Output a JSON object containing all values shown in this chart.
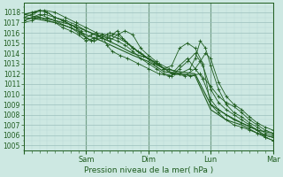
{
  "xlabel": "Pression niveau de la mer( hPa )",
  "bg_color": "#cde8e2",
  "grid_major_color": "#9bbfbc",
  "grid_minor_color": "#b8d8d4",
  "line_color": "#1e5c1e",
  "ylim": [
    1004.5,
    1018.9
  ],
  "xlim": [
    0,
    96
  ],
  "yticks": [
    1005,
    1006,
    1007,
    1008,
    1009,
    1010,
    1011,
    1012,
    1013,
    1014,
    1015,
    1016,
    1017,
    1018
  ],
  "day_positions": [
    0,
    24,
    48,
    72,
    96
  ],
  "day_labels": [
    "",
    "Sam",
    "Dim",
    "Lun",
    "Mar"
  ],
  "series": [
    {
      "x": [
        0,
        6,
        12,
        18,
        24,
        30,
        36,
        42,
        48,
        54,
        60,
        66,
        72,
        78,
        84,
        90,
        96
      ],
      "y": [
        1017.5,
        1017.3,
        1017.0,
        1016.5,
        1015.8,
        1015.2,
        1014.5,
        1013.8,
        1013.2,
        1012.2,
        1012.0,
        1011.8,
        1008.5,
        1007.5,
        1007.0,
        1006.2,
        1005.8
      ],
      "markers": false
    },
    {
      "x": [
        0,
        6,
        12,
        18,
        24,
        30,
        36,
        42,
        48,
        54,
        60,
        66,
        72,
        78,
        84,
        90,
        96
      ],
      "y": [
        1017.8,
        1017.5,
        1017.2,
        1016.8,
        1016.2,
        1015.5,
        1014.8,
        1014.0,
        1013.5,
        1012.5,
        1012.2,
        1012.0,
        1009.0,
        1008.0,
        1007.2,
        1006.5,
        1006.2
      ],
      "markers": false
    },
    {
      "x": [
        0,
        3,
        6,
        9,
        12,
        15,
        18,
        20,
        22,
        24,
        26,
        28,
        30,
        33,
        36,
        39,
        42,
        45,
        48,
        51,
        54,
        57,
        60,
        63,
        66,
        69,
        72,
        75,
        78,
        81,
        84,
        87,
        90,
        93,
        96
      ],
      "y": [
        1017.5,
        1017.8,
        1018.2,
        1018.0,
        1017.5,
        1017.2,
        1016.8,
        1016.5,
        1016.2,
        1015.5,
        1015.8,
        1016.0,
        1015.5,
        1015.2,
        1015.8,
        1016.2,
        1015.8,
        1014.5,
        1013.8,
        1013.2,
        1012.5,
        1012.8,
        1014.5,
        1015.0,
        1014.5,
        1013.0,
        1009.0,
        1008.2,
        1007.5,
        1007.0,
        1006.8,
        1006.5,
        1006.2,
        1005.8,
        1005.5
      ],
      "markers": true
    },
    {
      "x": [
        0,
        3,
        6,
        9,
        12,
        15,
        18,
        21,
        24,
        27,
        30,
        33,
        36,
        39,
        42,
        45,
        48,
        51,
        54,
        57,
        60,
        63,
        66,
        69,
        72,
        75,
        78,
        81,
        84,
        87,
        90,
        93,
        96
      ],
      "y": [
        1017.2,
        1017.5,
        1017.8,
        1017.5,
        1017.2,
        1016.8,
        1016.5,
        1016.0,
        1015.5,
        1015.2,
        1015.5,
        1016.0,
        1015.8,
        1015.2,
        1014.5,
        1014.0,
        1013.5,
        1013.0,
        1012.5,
        1012.0,
        1012.8,
        1013.5,
        1012.5,
        1011.5,
        1009.5,
        1008.5,
        1008.0,
        1007.5,
        1007.2,
        1006.8,
        1006.5,
        1006.0,
        1005.8
      ],
      "markers": true
    },
    {
      "x": [
        0,
        3,
        6,
        9,
        12,
        15,
        18,
        21,
        24,
        27,
        30,
        33,
        36,
        39,
        42,
        45,
        48,
        51,
        54,
        57,
        60,
        63,
        66,
        69,
        72,
        75,
        78,
        81,
        84,
        87,
        90,
        93,
        96
      ],
      "y": [
        1017.0,
        1017.2,
        1017.5,
        1017.2,
        1017.0,
        1016.5,
        1016.2,
        1015.8,
        1015.2,
        1015.5,
        1015.8,
        1015.5,
        1015.2,
        1014.8,
        1014.2,
        1013.5,
        1013.0,
        1012.5,
        1012.0,
        1011.8,
        1012.5,
        1013.2,
        1014.0,
        1012.8,
        1010.5,
        1009.2,
        1008.5,
        1008.0,
        1007.5,
        1007.0,
        1006.5,
        1005.8,
        1005.5
      ],
      "markers": true
    },
    {
      "x": [
        0,
        3,
        6,
        9,
        12,
        15,
        18,
        20,
        22,
        24,
        26,
        28,
        30,
        32,
        34,
        37,
        40,
        44,
        48,
        52,
        56,
        60,
        64,
        66,
        68,
        70,
        72,
        75,
        78,
        81,
        84,
        87,
        90,
        93,
        96
      ],
      "y": [
        1017.8,
        1018.0,
        1018.2,
        1018.0,
        1017.5,
        1017.2,
        1016.8,
        1016.5,
        1016.0,
        1015.5,
        1015.2,
        1015.5,
        1015.8,
        1014.8,
        1014.2,
        1013.8,
        1013.5,
        1013.0,
        1012.5,
        1012.0,
        1011.8,
        1012.0,
        1012.5,
        1013.5,
        1015.2,
        1014.5,
        1012.8,
        1010.5,
        1009.0,
        1008.2,
        1007.8,
        1007.2,
        1006.8,
        1006.2,
        1006.0
      ],
      "markers": true
    },
    {
      "x": [
        0,
        4,
        8,
        12,
        16,
        20,
        24,
        28,
        32,
        34,
        36,
        38,
        42,
        46,
        50,
        54,
        58,
        62,
        66,
        68,
        70,
        72,
        75,
        78,
        81,
        84,
        87,
        90,
        93,
        96
      ],
      "y": [
        1017.2,
        1017.5,
        1017.8,
        1017.5,
        1017.2,
        1016.8,
        1016.2,
        1015.8,
        1015.5,
        1015.8,
        1016.2,
        1015.5,
        1014.5,
        1013.8,
        1013.0,
        1012.5,
        1012.0,
        1011.8,
        1012.5,
        1013.2,
        1014.0,
        1013.5,
        1011.2,
        1009.8,
        1009.0,
        1008.5,
        1007.8,
        1007.2,
        1006.8,
        1006.5
      ],
      "markers": true
    },
    {
      "x": [
        0,
        4,
        8,
        12,
        16,
        20,
        24,
        28,
        32,
        36,
        40,
        44,
        48,
        52,
        56,
        60,
        64,
        68,
        72,
        75,
        78,
        81,
        84,
        87,
        90,
        93,
        96
      ],
      "y": [
        1017.8,
        1018.0,
        1018.2,
        1018.0,
        1017.5,
        1017.0,
        1016.5,
        1016.0,
        1015.8,
        1015.5,
        1015.0,
        1014.2,
        1013.5,
        1013.0,
        1012.5,
        1012.0,
        1011.8,
        1012.0,
        1010.8,
        1009.8,
        1009.2,
        1008.8,
        1008.2,
        1007.5,
        1007.0,
        1006.5,
        1006.2
      ],
      "markers": true
    }
  ]
}
